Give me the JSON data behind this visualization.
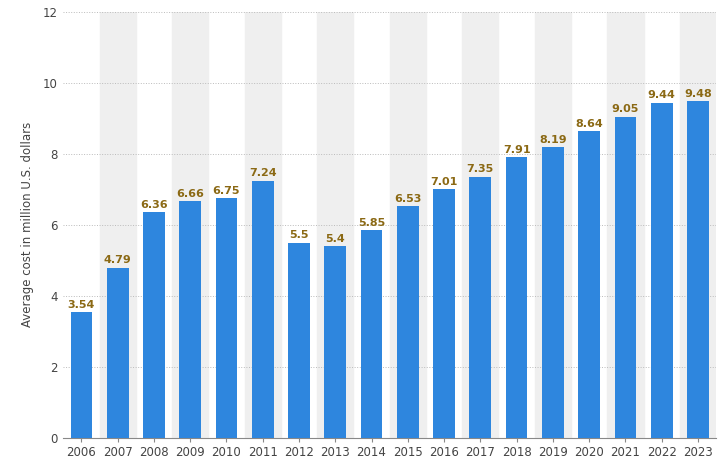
{
  "years": [
    "2006",
    "2007",
    "2008",
    "2009",
    "2010",
    "2011",
    "2012",
    "2013",
    "2014",
    "2015",
    "2016",
    "2017",
    "2018",
    "2019",
    "2020",
    "2021",
    "2022",
    "2023"
  ],
  "values": [
    3.54,
    4.79,
    6.36,
    6.66,
    6.75,
    7.24,
    5.5,
    5.4,
    5.85,
    6.53,
    7.01,
    7.35,
    7.91,
    8.19,
    8.64,
    9.05,
    9.44,
    9.48
  ],
  "bar_color": "#2e86de",
  "ylabel": "Average cost in million U.S. dollars",
  "ylim": [
    0,
    12
  ],
  "yticks": [
    0,
    2,
    4,
    6,
    8,
    10,
    12
  ],
  "background_color": "#ffffff",
  "plot_bg_color": "#ffffff",
  "stripe_color": "#efefef",
  "grid_color": "#bbbbbb",
  "label_color": "#8B6914",
  "label_fontsize": 8.0,
  "bar_width": 0.6,
  "figsize": [
    7.23,
    4.66
  ],
  "dpi": 100
}
